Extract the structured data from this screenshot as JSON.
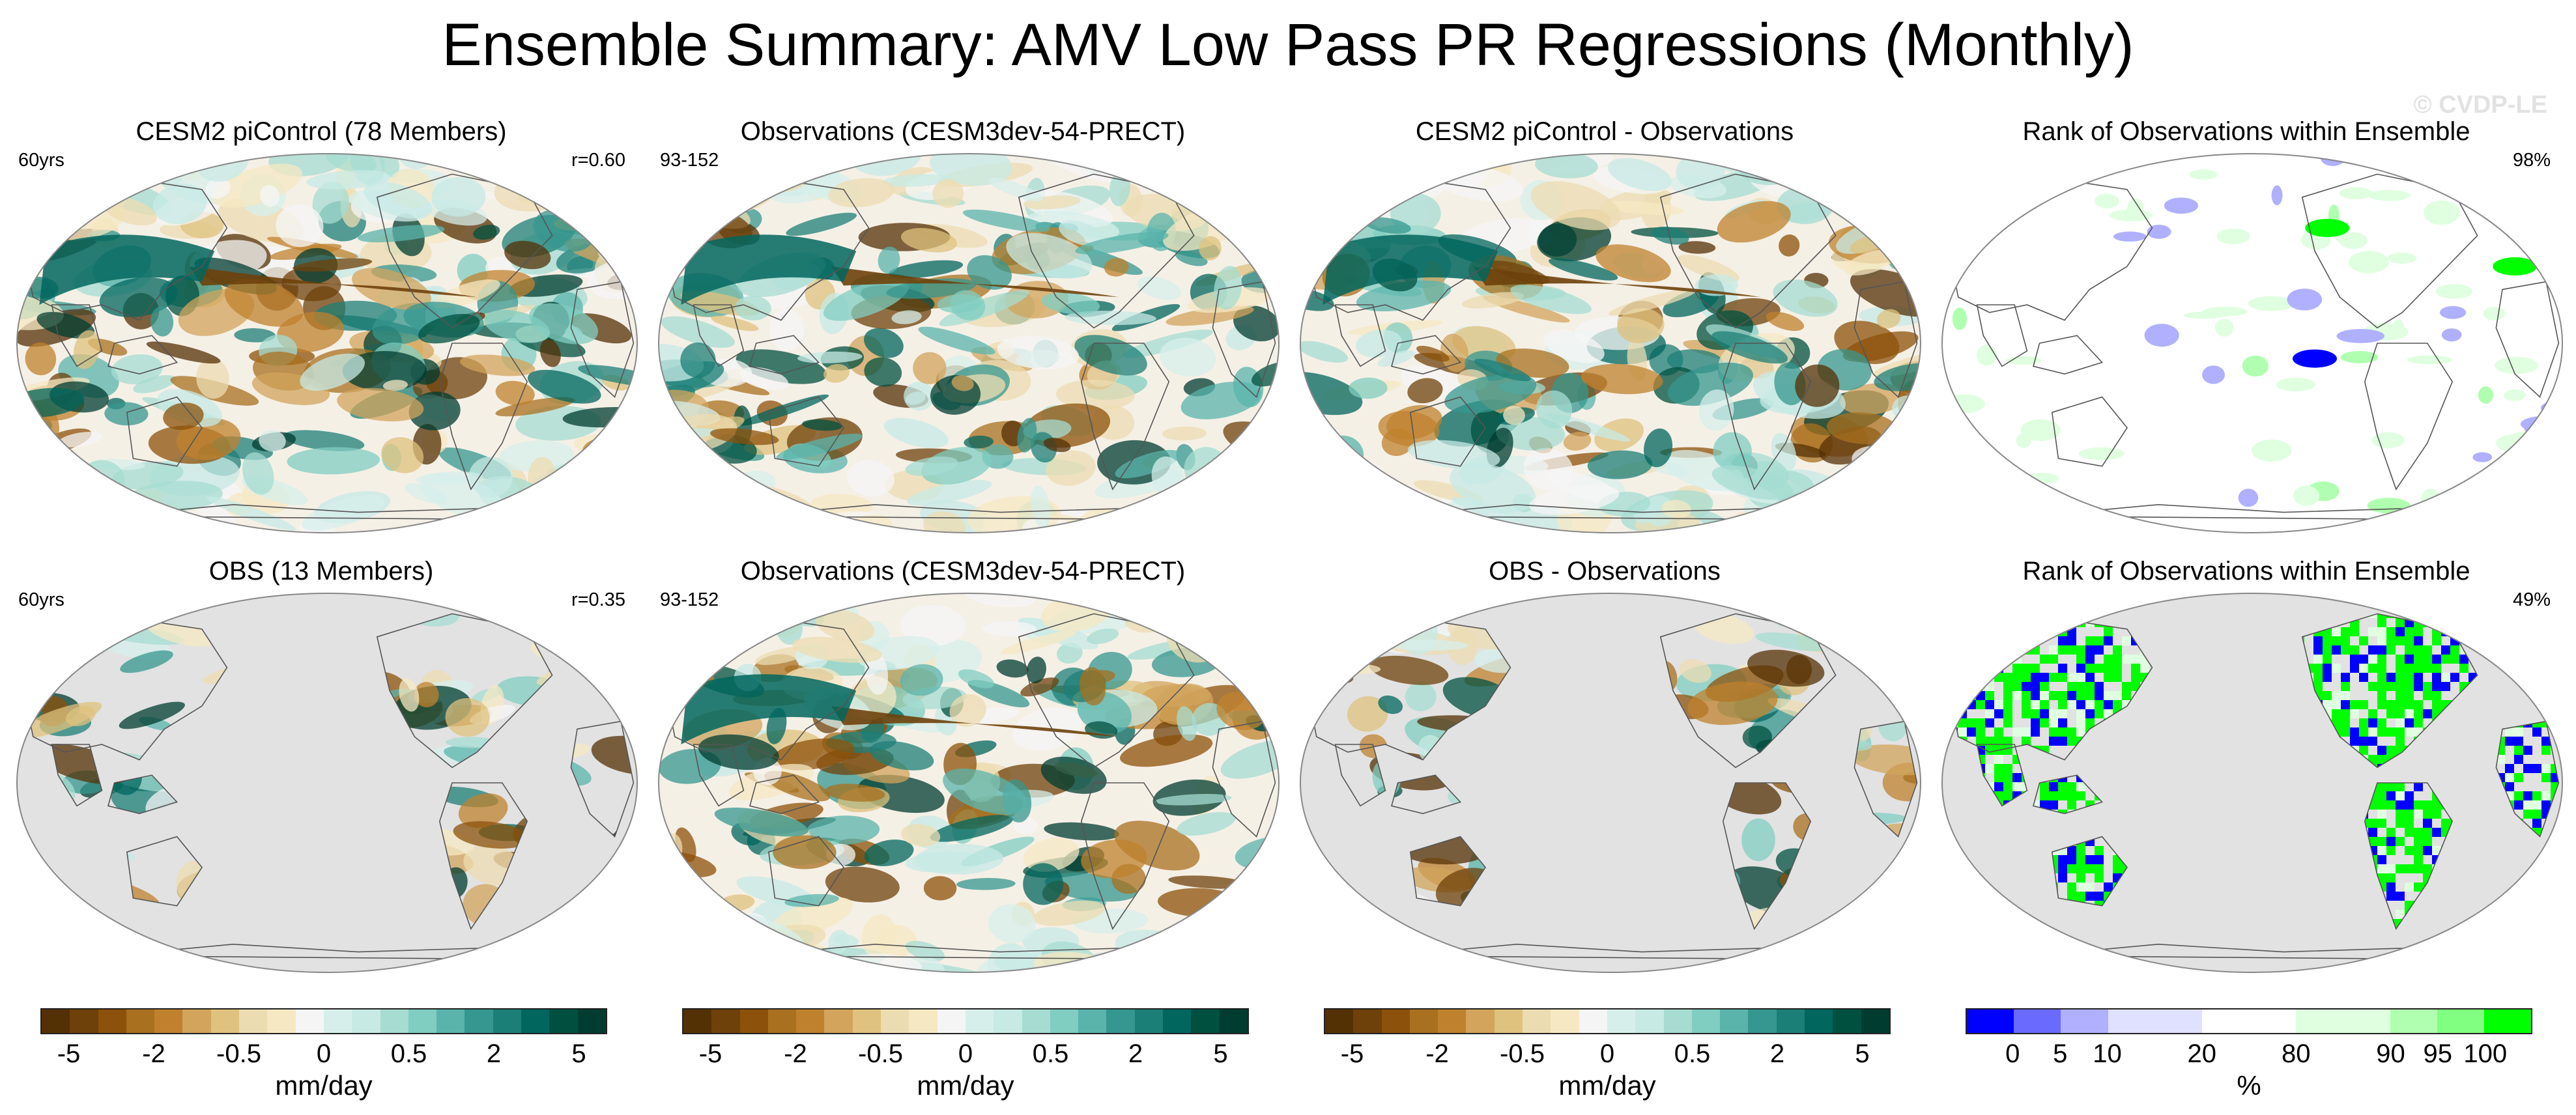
{
  "title": "Ensemble Summary: AMV Low Pass PR Regressions (Monthly)",
  "watermark": "© CVDP-LE",
  "panels": [
    {
      "title": "CESM2 piControl (78 Members)",
      "left": "60yrs",
      "right": "r=0.60",
      "type": "model",
      "coverage": "global",
      "seed": 11
    },
    {
      "title": "Observations (CESM3dev-54-PRECT)",
      "left": "93-152",
      "right": "",
      "type": "obs",
      "coverage": "global",
      "seed": 23
    },
    {
      "title": "CESM2 piControl - Observations",
      "left": "",
      "right": "",
      "type": "diff",
      "coverage": "global",
      "seed": 37
    },
    {
      "title": "Rank of Observations within Ensemble",
      "left": "",
      "right": "98%",
      "type": "rank",
      "coverage": "global",
      "seed": 41
    },
    {
      "title": "OBS (13 Members)",
      "left": "60yrs",
      "right": "r=0.35",
      "type": "model",
      "coverage": "land",
      "seed": 53
    },
    {
      "title": "Observations (CESM3dev-54-PRECT)",
      "left": "93-152",
      "right": "",
      "type": "obs",
      "coverage": "global",
      "seed": 61
    },
    {
      "title": "OBS - Observations",
      "left": "",
      "right": "",
      "type": "diff",
      "coverage": "land",
      "seed": 71
    },
    {
      "title": "Rank of Observations within Ensemble",
      "left": "",
      "right": "49%",
      "type": "rank",
      "coverage": "land",
      "seed": 83
    }
  ],
  "colorbars": [
    {
      "label": "mm/day",
      "colors": [
        "#543005",
        "#6e410b",
        "#8c510a",
        "#a8701f",
        "#bf812d",
        "#d2a45c",
        "#dfc27d",
        "#ecdcb1",
        "#f6e8c3",
        "#f5f5f5",
        "#d7efeb",
        "#c7eae5",
        "#a6dcd2",
        "#80cdc1",
        "#5ab4ac",
        "#35978f",
        "#1c7f77",
        "#01665e",
        "#00503f",
        "#003c30"
      ],
      "ticks": [
        {
          "label": "-5",
          "pos": 0.05
        },
        {
          "label": "-2",
          "pos": 0.2
        },
        {
          "label": "-0.5",
          "pos": 0.35
        },
        {
          "label": "0",
          "pos": 0.5
        },
        {
          "label": "0.5",
          "pos": 0.65
        },
        {
          "label": "2",
          "pos": 0.8
        },
        {
          "label": "5",
          "pos": 0.95
        }
      ]
    },
    {
      "label": "mm/day",
      "colors": [
        "#543005",
        "#6e410b",
        "#8c510a",
        "#a8701f",
        "#bf812d",
        "#d2a45c",
        "#dfc27d",
        "#ecdcb1",
        "#f6e8c3",
        "#f5f5f5",
        "#d7efeb",
        "#c7eae5",
        "#a6dcd2",
        "#80cdc1",
        "#5ab4ac",
        "#35978f",
        "#1c7f77",
        "#01665e",
        "#00503f",
        "#003c30"
      ],
      "ticks": [
        {
          "label": "-5",
          "pos": 0.05
        },
        {
          "label": "-2",
          "pos": 0.2
        },
        {
          "label": "-0.5",
          "pos": 0.35
        },
        {
          "label": "0",
          "pos": 0.5
        },
        {
          "label": "0.5",
          "pos": 0.65
        },
        {
          "label": "2",
          "pos": 0.8
        },
        {
          "label": "5",
          "pos": 0.95
        }
      ]
    },
    {
      "label": "mm/day",
      "colors": [
        "#543005",
        "#6e410b",
        "#8c510a",
        "#a8701f",
        "#bf812d",
        "#d2a45c",
        "#dfc27d",
        "#ecdcb1",
        "#f6e8c3",
        "#f5f5f5",
        "#d7efeb",
        "#c7eae5",
        "#a6dcd2",
        "#80cdc1",
        "#5ab4ac",
        "#35978f",
        "#1c7f77",
        "#01665e",
        "#00503f",
        "#003c30"
      ],
      "ticks": [
        {
          "label": "-5",
          "pos": 0.05
        },
        {
          "label": "-2",
          "pos": 0.2
        },
        {
          "label": "-0.5",
          "pos": 0.35
        },
        {
          "label": "0",
          "pos": 0.5
        },
        {
          "label": "0.5",
          "pos": 0.65
        },
        {
          "label": "2",
          "pos": 0.8
        },
        {
          "label": "5",
          "pos": 0.95
        }
      ]
    },
    {
      "label": "%",
      "colors": [
        "#0000ff",
        "#6a6aff",
        "#b0b0ff",
        "#e0e0ff",
        "#e0e0ff",
        "#ffffff",
        "#ffffff",
        "#e0ffe0",
        "#e0ffe0",
        "#b0ffb0",
        "#80ff80",
        "#00ff00"
      ],
      "ticks": [
        {
          "label": "0",
          "pos": 0.083
        },
        {
          "label": "5",
          "pos": 0.167
        },
        {
          "label": "10",
          "pos": 0.25
        },
        {
          "label": "20",
          "pos": 0.417
        },
        {
          "label": "80",
          "pos": 0.583
        },
        {
          "label": "90",
          "pos": 0.75
        },
        {
          "label": "95",
          "pos": 0.833
        },
        {
          "label": "100",
          "pos": 0.917
        }
      ]
    }
  ]
}
